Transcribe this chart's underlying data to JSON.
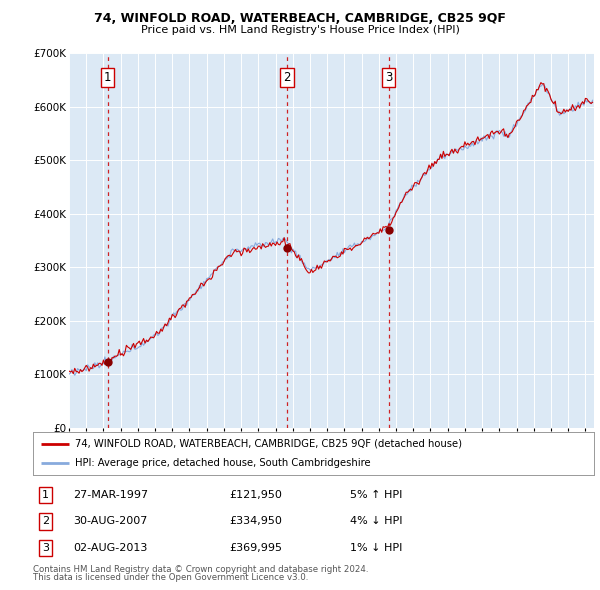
{
  "title": "74, WINFOLD ROAD, WATERBEACH, CAMBRIDGE, CB25 9QF",
  "subtitle": "Price paid vs. HM Land Registry's House Price Index (HPI)",
  "background_color": "#ffffff",
  "plot_bg_color": "#dce9f5",
  "grid_color": "#ffffff",
  "sale_year_floats": [
    1997.24,
    2007.66,
    2013.58
  ],
  "sale_prices": [
    121950,
    334950,
    369995
  ],
  "sale_labels": [
    "1",
    "2",
    "3"
  ],
  "legend_line1": "74, WINFOLD ROAD, WATERBEACH, CAMBRIDGE, CB25 9QF (detached house)",
  "legend_line2": "HPI: Average price, detached house, South Cambridgeshire",
  "table_data": [
    [
      "1",
      "27-MAR-1997",
      "£121,950",
      "5% ↑ HPI"
    ],
    [
      "2",
      "30-AUG-2007",
      "£334,950",
      "4% ↓ HPI"
    ],
    [
      "3",
      "02-AUG-2013",
      "£369,995",
      "1% ↓ HPI"
    ]
  ],
  "footer": "Contains HM Land Registry data © Crown copyright and database right 2024.\nThis data is licensed under the Open Government Licence v3.0.",
  "price_line_color": "#cc0000",
  "hpi_line_color": "#88aadd",
  "sale_marker_color": "#880000",
  "dashed_line_color": "#cc0000",
  "ylim": [
    0,
    700000
  ],
  "yticks": [
    0,
    100000,
    200000,
    300000,
    400000,
    500000,
    600000,
    700000
  ],
  "xlim": [
    1995,
    2025.5
  ],
  "x_tick_years": [
    1995,
    1996,
    1997,
    1998,
    1999,
    2000,
    2001,
    2002,
    2003,
    2004,
    2005,
    2006,
    2007,
    2008,
    2009,
    2010,
    2011,
    2012,
    2013,
    2014,
    2015,
    2016,
    2017,
    2018,
    2019,
    2020,
    2021,
    2022,
    2023,
    2024,
    2025
  ]
}
